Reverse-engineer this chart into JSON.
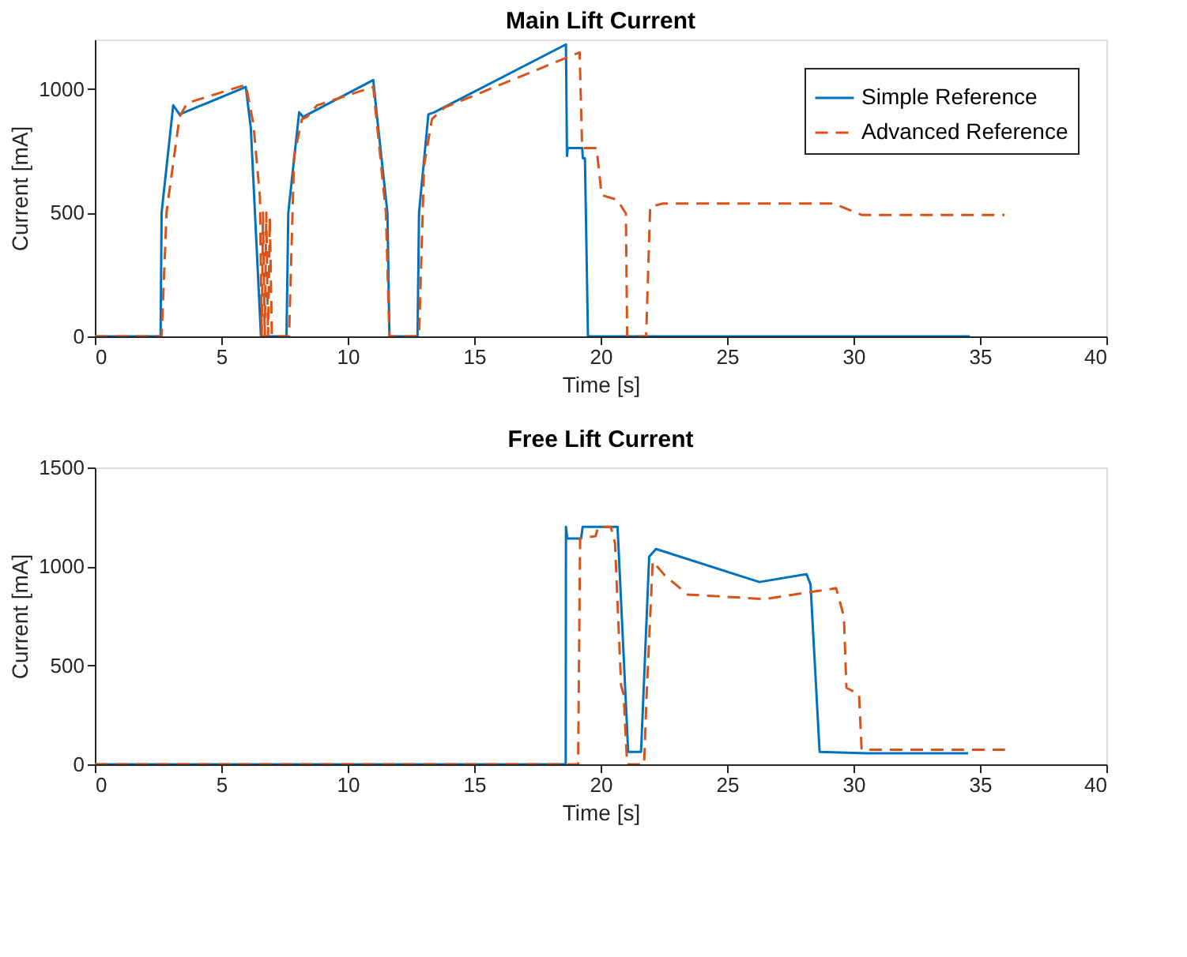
{
  "chart_data": [
    {
      "type": "line",
      "title": "Main Lift Current",
      "xlabel": "Time [s]",
      "ylabel": "Current [mA]",
      "xlim": [
        0,
        40
      ],
      "xticks": [
        0,
        5,
        10,
        15,
        20,
        25,
        30,
        35,
        40
      ],
      "ylim": [
        0,
        1200
      ],
      "yticks": [
        0,
        500,
        1000
      ],
      "grid": false,
      "legend": "top right",
      "series": [
        {
          "name": "Simple Reference",
          "color": "#0072bd",
          "line_style": "solid",
          "x": [
            0,
            2.6,
            2.64,
            3.1,
            3.35,
            5.97,
            6.17,
            6.57,
            7.58,
            7.65,
            8.08,
            8.23,
            11.01,
            11.17,
            11.57,
            11.65,
            12.76,
            12.82,
            13.19,
            13.43,
            18.63,
            18.67,
            18.7,
            19.27,
            19.3,
            19.38,
            19.5,
            34.6
          ],
          "values": [
            0,
            0,
            500,
            934,
            897,
            1008,
            840,
            0,
            0,
            500,
            906,
            887,
            1036,
            878,
            500,
            0,
            0,
            500,
            897,
            906,
            1180,
            729,
            761,
            761,
            720,
            720,
            0,
            0
          ]
        },
        {
          "name": "Advanced Reference",
          "color": "#d95319",
          "line_style": "dashed",
          "x": [
            0,
            2.64,
            2.84,
            3.35,
            3.65,
            5.97,
            6.27,
            6.53,
            6.6,
            6.65,
            6.72,
            6.78,
            6.85,
            6.92,
            7.0,
            7.68,
            7.88,
            8.19,
            8.39,
            8.79,
            11.01,
            11.51,
            11.65,
            12.82,
            13.02,
            13.33,
            13.83,
            19.17,
            19.27,
            19.84,
            20.04,
            20.65,
            21.0,
            21.05,
            21.8,
            21.96,
            22.46,
            29.21,
            30.32,
            35.97
          ],
          "values": [
            0,
            0,
            506,
            887,
            943,
            1017,
            859,
            562,
            0,
            500,
            0,
            500,
            0,
            480,
            0,
            0,
            729,
            878,
            887,
            934,
            1008,
            500,
            0,
            0,
            692,
            878,
            925,
            1148,
            761,
            761,
            571,
            552,
            497,
            0,
            0,
            524,
            537,
            537,
            491,
            491
          ]
        }
      ]
    },
    {
      "type": "line",
      "title": "Free Lift Current",
      "xlabel": "Time [s]",
      "ylabel": "Current [mA]",
      "xlim": [
        0,
        40
      ],
      "xticks": [
        0,
        5,
        10,
        15,
        20,
        25,
        30,
        35,
        40
      ],
      "ylim": [
        0,
        1500
      ],
      "yticks": [
        0,
        500,
        1000,
        1500
      ],
      "grid": false,
      "legend": "top right",
      "series": [
        {
          "name": "Simple Reference",
          "color": "#0072bd",
          "line_style": "solid",
          "x": [
            0,
            18.62,
            18.63,
            18.68,
            19.23,
            19.29,
            20.67,
            21.09,
            21.6,
            21.92,
            22.19,
            26.28,
            28.14,
            28.3,
            28.66,
            30.53,
            34.53
          ],
          "values": [
            0,
            0,
            1200,
            1141,
            1141,
            1200,
            1200,
            63,
            63,
            1049,
            1088,
            921,
            961,
            910,
            63,
            56,
            56
          ]
        },
        {
          "name": "Advanced Reference",
          "color": "#d95319",
          "line_style": "dashed",
          "x": [
            0,
            19.11,
            19.19,
            19.8,
            19.9,
            20.4,
            20.57,
            20.81,
            20.91,
            21.05,
            21.72,
            21.82,
            22.06,
            22.53,
            23.44,
            26.48,
            29.11,
            29.31,
            29.62,
            29.72,
            30.22,
            30.32,
            35.99
          ],
          "values": [
            0,
            0,
            1141,
            1153,
            1200,
            1200,
            1118,
            399,
            353,
            0,
            0,
            353,
            1025,
            956,
            858,
            835,
            886,
            891,
            747,
            387,
            353,
            74,
            74
          ]
        }
      ]
    }
  ]
}
